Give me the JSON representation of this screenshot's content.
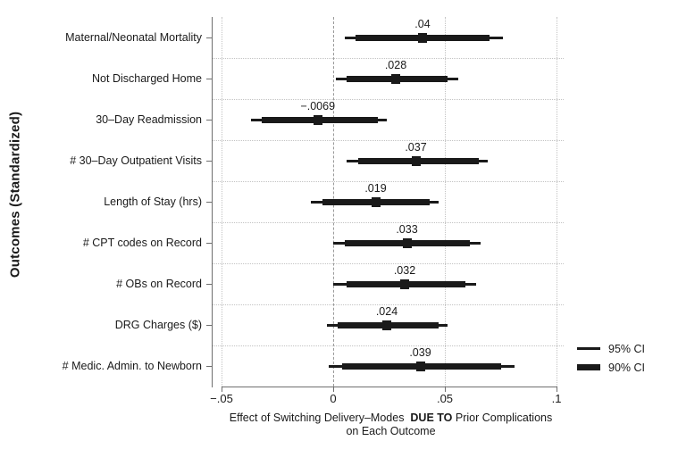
{
  "chart_data": {
    "type": "scatter",
    "subtype": "coefficient-plot-horizontal-ci",
    "title": "",
    "ylabel": "Outcomes (Standardized)",
    "xlabel_line1_pre": "Effect of Switching Delivery–Modes  ",
    "xlabel_line1_bold": "DUE TO",
    "xlabel_line1_post": " Prior Complications",
    "xlabel_line2": "on Each Outcome",
    "xlim": [
      -0.05,
      0.1
    ],
    "grid": true,
    "zero_reference_line": true,
    "x_ticks": [
      {
        "value": -0.05,
        "label": "−.05"
      },
      {
        "value": 0,
        "label": "0"
      },
      {
        "value": 0.05,
        "label": ".05"
      },
      {
        "value": 0.1,
        "label": ".1"
      }
    ],
    "categories": [
      "Maternal/Neonatal Mortality",
      "Not Discharged Home",
      "30–Day Readmission",
      "# 30–Day Outpatient Visits",
      "Length of Stay (hrs)",
      "# CPT codes on Record",
      "# OBs on Record",
      "DRG Charges ($)",
      "# Medic. Admin. to Newborn"
    ],
    "point_labels": [
      ".04",
      ".028",
      "−.0069",
      ".037",
      ".019",
      ".033",
      ".032",
      ".024",
      ".039"
    ],
    "series": [
      {
        "name": "point_estimate",
        "values": [
          0.04,
          0.028,
          -0.0069,
          0.037,
          0.019,
          0.033,
          0.032,
          0.024,
          0.039
        ]
      },
      {
        "name": "ci_95",
        "values": [
          [
            0.005,
            0.076
          ],
          [
            0.001,
            0.056
          ],
          [
            -0.037,
            0.024
          ],
          [
            0.006,
            0.069
          ],
          [
            -0.01,
            0.047
          ],
          [
            0.0,
            0.066
          ],
          [
            0.0,
            0.064
          ],
          [
            -0.003,
            0.051
          ],
          [
            -0.002,
            0.081
          ]
        ]
      },
      {
        "name": "ci_90",
        "values": [
          [
            0.01,
            0.07
          ],
          [
            0.006,
            0.051
          ],
          [
            -0.032,
            0.02
          ],
          [
            0.011,
            0.065
          ],
          [
            -0.005,
            0.043
          ],
          [
            0.005,
            0.061
          ],
          [
            0.006,
            0.059
          ],
          [
            0.002,
            0.047
          ],
          [
            0.004,
            0.075
          ]
        ]
      }
    ],
    "legend": {
      "position": "bottom-right",
      "entries": [
        {
          "label": "95% CI",
          "style": "thin-line"
        },
        {
          "label": "90% CI",
          "style": "thick-line"
        }
      ]
    },
    "colors": {
      "marks": "#1a1a1a",
      "text": "#1a1a1a",
      "grid_dotted": "#c3c3c3",
      "zero_line_dashed": "#9a9a9a",
      "axis": "#6f6f6f",
      "background": "#ffffff"
    }
  }
}
